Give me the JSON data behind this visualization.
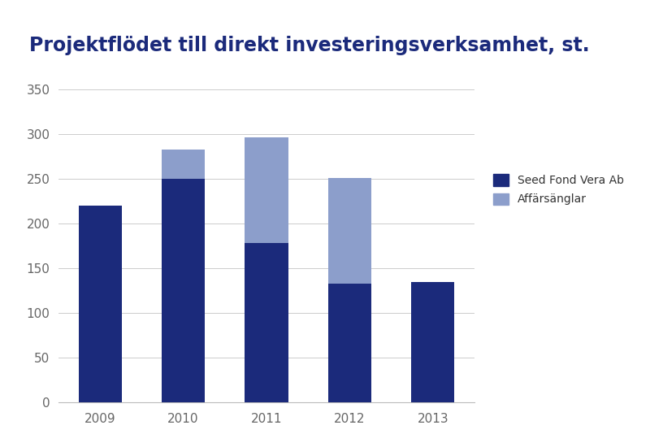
{
  "title": "Projektflödet till direkt investeringsverksamhet, st.",
  "years": [
    "2009",
    "2010",
    "2011",
    "2012",
    "2013"
  ],
  "seed_values": [
    220,
    250,
    178,
    133,
    135
  ],
  "angel_values": [
    0,
    33,
    118,
    118,
    0
  ],
  "seed_color": "#1b2a7b",
  "angel_color": "#8c9ecb",
  "title_color": "#1b2a7b",
  "bg_color": "#ffffff",
  "ylim": [
    0,
    370
  ],
  "yticks": [
    0,
    50,
    100,
    150,
    200,
    250,
    300,
    350
  ],
  "legend_seed": "Seed Fond Vera Ab",
  "legend_angel": "Affärsänglar",
  "bar_width": 0.52
}
